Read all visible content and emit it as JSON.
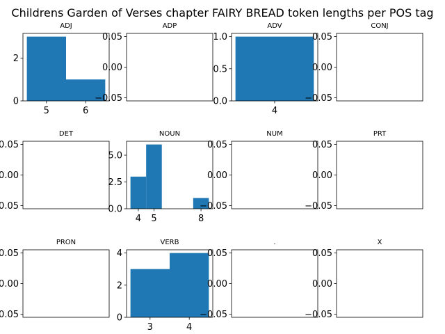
{
  "title": "Childrens Garden of Verses chapter FAIRY BREAD token lengths per POS tag",
  "chart_data": [
    {
      "type": "bar",
      "title": "ADJ",
      "bins": [
        [
          4.5,
          5.5
        ],
        [
          5.5,
          6.5
        ]
      ],
      "values": [
        3,
        1
      ],
      "xticks": [
        "5",
        "6"
      ],
      "xtick_values": [
        5,
        6
      ],
      "xlim": [
        4.4,
        6.6
      ],
      "ylim": [
        0,
        3.15
      ],
      "yticks": [
        "0",
        "2"
      ],
      "ytick_values": [
        0,
        2
      ]
    },
    {
      "type": "bar",
      "title": "ADP",
      "bins": [],
      "values": [],
      "xticks": [],
      "xtick_values": [],
      "xlim": [
        0,
        1
      ],
      "ylim": [
        -0.055,
        0.055
      ],
      "yticks": [
        "−0.05",
        "0.00",
        "0.05"
      ],
      "ytick_values": [
        -0.05,
        0,
        0.05
      ]
    },
    {
      "type": "bar",
      "title": "ADV",
      "bins": [
        [
          3.5,
          4.5
        ]
      ],
      "values": [
        1
      ],
      "xticks": [
        "4"
      ],
      "xtick_values": [
        4
      ],
      "xlim": [
        3.45,
        4.55
      ],
      "ylim": [
        0,
        1.05
      ],
      "yticks": [
        "0.0",
        "0.5",
        "1.0"
      ],
      "ytick_values": [
        0,
        0.5,
        1
      ]
    },
    {
      "type": "bar",
      "title": "CONJ",
      "bins": [],
      "values": [],
      "xticks": [],
      "xtick_values": [],
      "xlim": [
        0,
        1
      ],
      "ylim": [
        -0.055,
        0.055
      ],
      "yticks": [
        "−0.05",
        "0.00",
        "0.05"
      ],
      "ytick_values": [
        -0.05,
        0,
        0.05
      ]
    },
    {
      "type": "bar",
      "title": "DET",
      "bins": [],
      "values": [],
      "xticks": [],
      "xtick_values": [],
      "xlim": [
        0,
        1
      ],
      "ylim": [
        -0.055,
        0.055
      ],
      "yticks": [
        "−0.05",
        "0.00",
        "0.05"
      ],
      "ytick_values": [
        -0.05,
        0,
        0.05
      ]
    },
    {
      "type": "bar",
      "title": "NOUN",
      "bins": [
        [
          3.5,
          4.5
        ],
        [
          4.5,
          5.5
        ],
        [
          7.5,
          8.5
        ]
      ],
      "values": [
        3,
        6,
        1
      ],
      "xticks": [
        "4",
        "5",
        "8"
      ],
      "xtick_values": [
        4,
        5,
        8
      ],
      "xlim": [
        3.25,
        8.75
      ],
      "ylim": [
        0,
        6.3
      ],
      "yticks": [
        "0.0",
        "2.5",
        "5.0"
      ],
      "ytick_values": [
        0,
        2.5,
        5
      ]
    },
    {
      "type": "bar",
      "title": "NUM",
      "bins": [],
      "values": [],
      "xticks": [],
      "xtick_values": [],
      "xlim": [
        0,
        1
      ],
      "ylim": [
        -0.055,
        0.055
      ],
      "yticks": [
        "−0.05",
        "0.00",
        "0.05"
      ],
      "ytick_values": [
        -0.05,
        0,
        0.05
      ]
    },
    {
      "type": "bar",
      "title": "PRT",
      "bins": [],
      "values": [],
      "xticks": [],
      "xtick_values": [],
      "xlim": [
        0,
        1
      ],
      "ylim": [
        -0.055,
        0.055
      ],
      "yticks": [
        "−0.05",
        "0.00",
        "0.05"
      ],
      "ytick_values": [
        -0.05,
        0,
        0.05
      ]
    },
    {
      "type": "bar",
      "title": "PRON",
      "bins": [],
      "values": [],
      "xticks": [],
      "xtick_values": [],
      "xlim": [
        0,
        1
      ],
      "ylim": [
        -0.055,
        0.055
      ],
      "yticks": [
        "−0.05",
        "0.00",
        "0.05"
      ],
      "ytick_values": [
        -0.05,
        0,
        0.05
      ]
    },
    {
      "type": "bar",
      "title": "VERB",
      "bins": [
        [
          2.5,
          3.5
        ],
        [
          3.5,
          4.5
        ]
      ],
      "values": [
        3,
        4
      ],
      "xticks": [
        "3",
        "4"
      ],
      "xtick_values": [
        3,
        4
      ],
      "xlim": [
        2.4,
        4.6
      ],
      "ylim": [
        0,
        4.2
      ],
      "yticks": [
        "0",
        "2",
        "4"
      ],
      "ytick_values": [
        0,
        2,
        4
      ]
    },
    {
      "type": "bar",
      "title": ".",
      "bins": [],
      "values": [],
      "xticks": [],
      "xtick_values": [],
      "xlim": [
        0,
        1
      ],
      "ylim": [
        -0.055,
        0.055
      ],
      "yticks": [
        "−0.05",
        "0.00",
        "0.05"
      ],
      "ytick_values": [
        -0.05,
        0,
        0.05
      ]
    },
    {
      "type": "bar",
      "title": "X",
      "bins": [],
      "values": [],
      "xticks": [],
      "xtick_values": [],
      "xlim": [
        0,
        1
      ],
      "ylim": [
        -0.055,
        0.055
      ],
      "yticks": [
        "−0.05",
        "0.00",
        "0.05"
      ],
      "ytick_values": [
        -0.05,
        0,
        0.05
      ]
    }
  ],
  "colors": {
    "bar": "#1f77b4"
  }
}
